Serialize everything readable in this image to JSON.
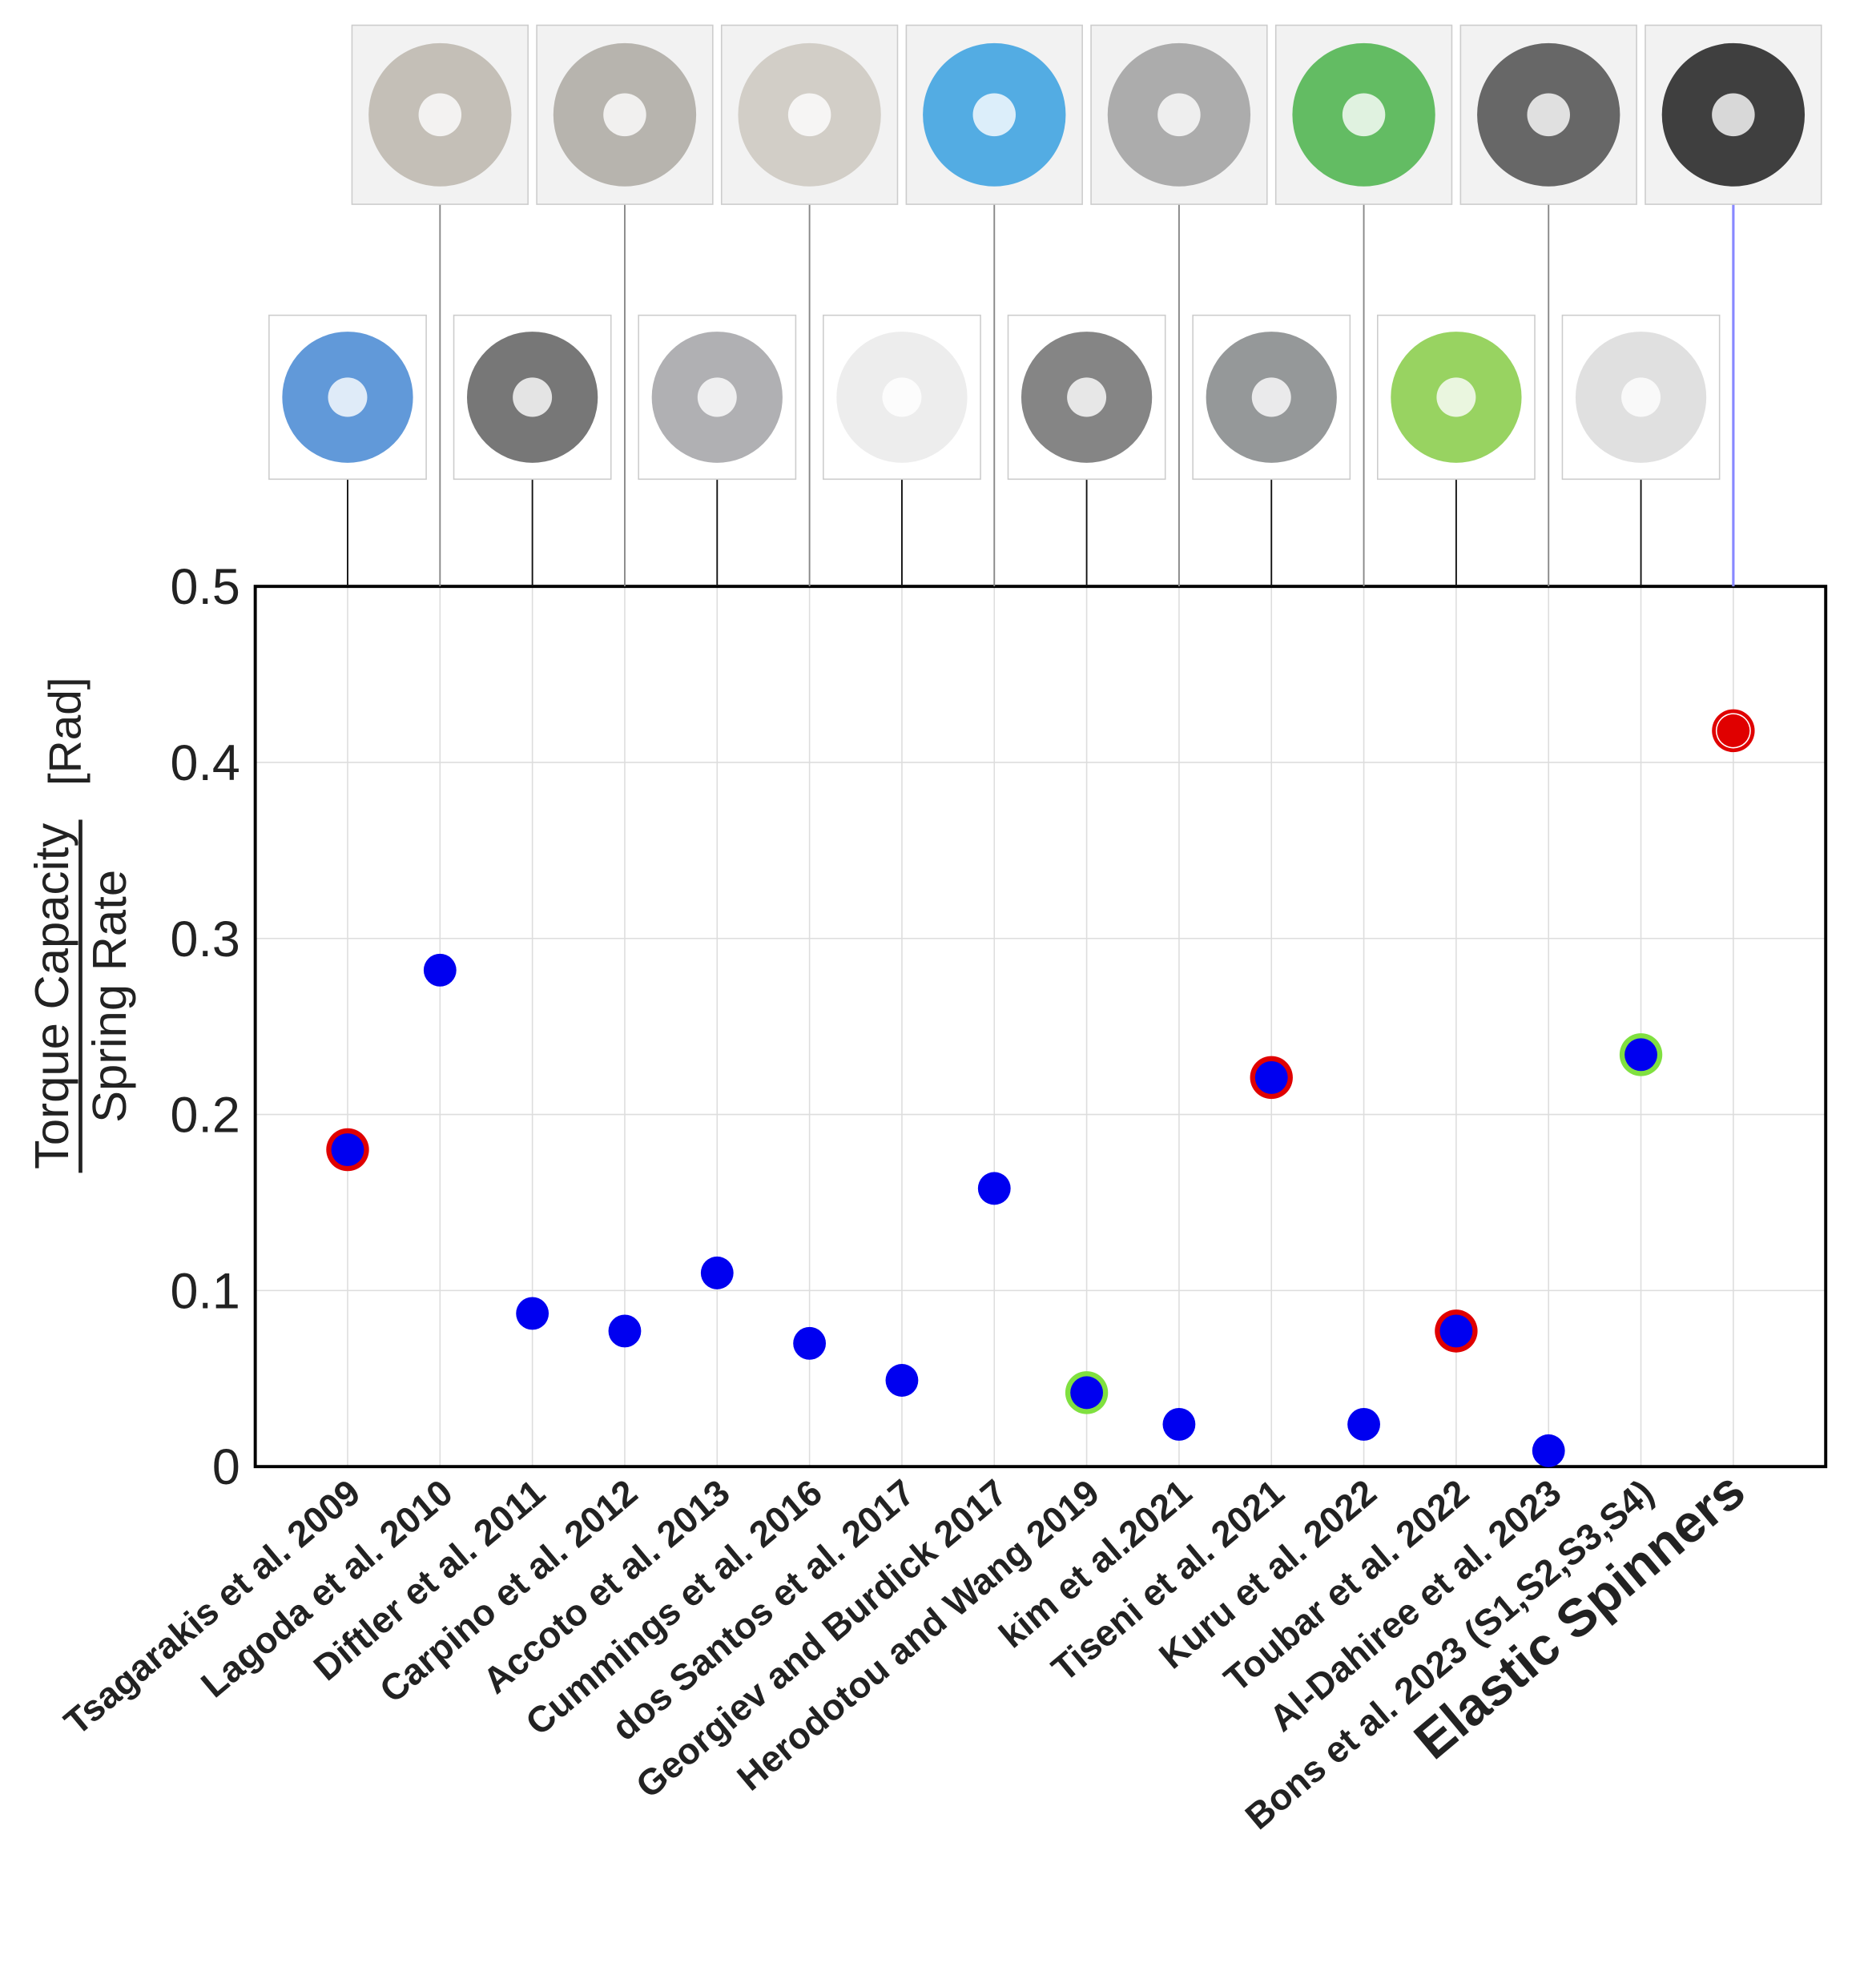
{
  "chart_data": {
    "type": "scatter",
    "y_label_numerator": "Torque Capacity",
    "y_label_denominator": "Spring Rate",
    "y_label_unit": "[Rad]",
    "categories": [
      "Tsagarakis et al. 2009",
      "Lagoda et al. 2010",
      "Diftler et al. 2011",
      "Carpino et al. 2012",
      "Accoto et al. 2013",
      "Cummings et al. 2016",
      "dos Santos et al. 2017",
      "Georgiev and Burdick 2017",
      "Herodotou and Wang 2019",
      "kim et al.2021",
      "Tiseni et al. 2021",
      "Kuru et al. 2022",
      "Toubar et al. 2022",
      "Al-Dahiree et al. 2023",
      "Bons et al. 2023 (S1,S2,S3,S4)",
      "Elastic Spinners"
    ],
    "values": [
      0.18,
      0.282,
      0.087,
      0.077,
      0.11,
      0.07,
      0.049,
      0.158,
      0.042,
      0.024,
      0.221,
      0.024,
      0.077,
      0.009,
      0.234,
      0.418
    ],
    "point_colors": [
      "#0000f0",
      "#0000f0",
      "#0000f0",
      "#0000f0",
      "#0000f0",
      "#0000f0",
      "#0000f0",
      "#0000f0",
      "#0000f0",
      "#0000f0",
      "#0000f0",
      "#0000f0",
      "#0000f0",
      "#0000f0",
      "#0000f0",
      "#e00000"
    ],
    "ring_colors": [
      "#e00000",
      null,
      null,
      null,
      null,
      null,
      null,
      null,
      "#80e040",
      null,
      "#e00000",
      null,
      "#e00000",
      null,
      "#80e040",
      "#e00000"
    ],
    "ylim": [
      0,
      0.5
    ],
    "yticks": [
      0,
      0.1,
      0.2,
      0.3,
      0.4,
      0.5
    ],
    "grid": true
  }
}
